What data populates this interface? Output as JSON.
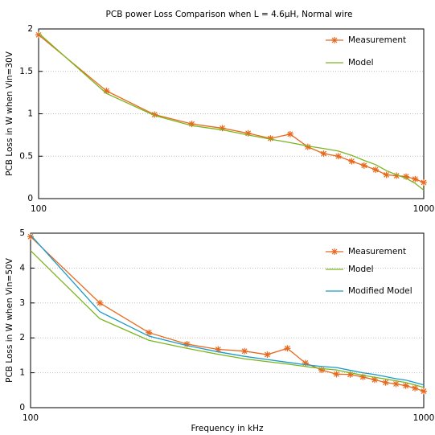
{
  "chart_data": [
    {
      "type": "line",
      "title": "PCB power Loss Comparison when L = 4.6µH, Normal wire",
      "y_label": "PCB Loss in W when Vin=30V",
      "log_x": true,
      "grid": true,
      "legend": "top-right",
      "xlim": [
        100,
        1000
      ],
      "xticks": [
        100,
        1000
      ],
      "ylim": [
        0,
        2
      ],
      "yticks": [
        0,
        0.5,
        1,
        1.5,
        2
      ],
      "x": [
        100,
        150,
        200,
        250,
        300,
        350,
        400,
        450,
        500,
        550,
        600,
        650,
        700,
        750,
        800,
        850,
        900,
        950,
        1000
      ],
      "series": [
        {
          "name": "Measurement",
          "color": "#e8681c",
          "marker": "asterisk",
          "values": [
            1.93,
            1.27,
            0.99,
            0.88,
            0.83,
            0.77,
            0.71,
            0.76,
            0.61,
            0.53,
            0.5,
            0.44,
            0.39,
            0.34,
            0.28,
            0.27,
            0.26,
            0.23,
            0.19
          ]
        },
        {
          "name": "Model",
          "color": "#7ab51d",
          "values": [
            1.95,
            1.24,
            0.98,
            0.86,
            0.81,
            0.75,
            0.7,
            0.66,
            0.62,
            0.59,
            0.56,
            0.51,
            0.45,
            0.4,
            0.33,
            0.28,
            0.24,
            0.18,
            0.1
          ]
        }
      ]
    },
    {
      "type": "line",
      "y_label": "PCB Loss in W when Vin=50V",
      "x_label": "Frequency in kHz",
      "log_x": true,
      "grid": true,
      "legend": "top-right",
      "xlim": [
        100,
        1000
      ],
      "xticks": [
        100,
        1000
      ],
      "ylim": [
        0,
        5
      ],
      "yticks": [
        0,
        1,
        2,
        3,
        4,
        5
      ],
      "x": [
        100,
        150,
        200,
        250,
        300,
        350,
        400,
        450,
        500,
        550,
        600,
        650,
        700,
        750,
        800,
        850,
        900,
        950,
        1000
      ],
      "series": [
        {
          "name": "Measurement",
          "color": "#e8681c",
          "marker": "asterisk",
          "values": [
            4.9,
            3.0,
            2.15,
            1.82,
            1.67,
            1.62,
            1.52,
            1.7,
            1.28,
            1.08,
            0.96,
            0.95,
            0.88,
            0.8,
            0.72,
            0.68,
            0.63,
            0.56,
            0.47
          ]
        },
        {
          "name": "Model",
          "color": "#7ab51d",
          "values": [
            4.5,
            2.55,
            1.93,
            1.7,
            1.53,
            1.4,
            1.32,
            1.25,
            1.18,
            1.12,
            1.08,
            1.0,
            0.93,
            0.87,
            0.82,
            0.77,
            0.72,
            0.65,
            0.58
          ]
        },
        {
          "name": "Modified Model",
          "color": "#1a9bc7",
          "values": [
            4.95,
            2.75,
            2.05,
            1.78,
            1.6,
            1.47,
            1.38,
            1.3,
            1.23,
            1.18,
            1.15,
            1.07,
            1.0,
            0.95,
            0.89,
            0.83,
            0.79,
            0.72,
            0.65
          ]
        }
      ]
    }
  ]
}
